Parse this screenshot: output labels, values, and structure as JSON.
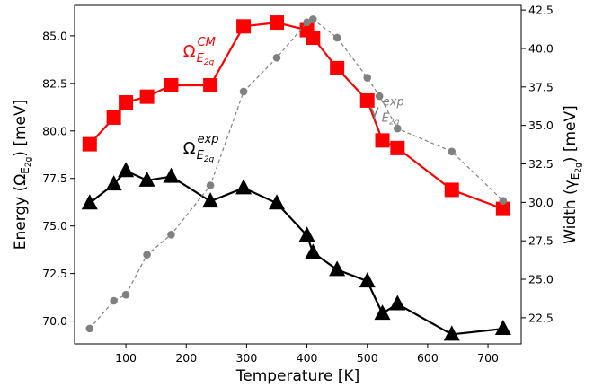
{
  "chart_data": {
    "type": "line",
    "xlabel": "Temperature [K]",
    "ylabel_left": "Energy (Ω",
    "ylabel_left_sub": "E",
    "ylabel_left_subsub": "2g",
    "ylabel_left_tail": ") [meV]",
    "ylabel_right": "Width (γ",
    "ylabel_right_sub": "E",
    "ylabel_right_subsub": "2g",
    "ylabel_right_tail": ") [meV]",
    "xlim": [
      15,
      755
    ],
    "ylim_left": [
      68.8,
      86.6
    ],
    "ylim_right": [
      20.8,
      42.8
    ],
    "x_ticks": [
      "100",
      "200",
      "300",
      "400",
      "500",
      "600",
      "700"
    ],
    "y_left_ticks": [
      "70.0",
      "72.5",
      "75.0",
      "77.5",
      "80.0",
      "82.5",
      "85.0"
    ],
    "y_right_ticks": [
      "22.5",
      "25.0",
      "27.5",
      "30.0",
      "32.5",
      "35.0",
      "37.5",
      "40.0",
      "42.5"
    ],
    "series": [
      {
        "name": "Ω_E2g^CM",
        "axis": "left",
        "color": "#ff0000",
        "marker": "square",
        "x": [
          40,
          80,
          100,
          135,
          175,
          240,
          295,
          350,
          400,
          410,
          450,
          500,
          525,
          550,
          640,
          725
        ],
        "y": [
          79.3,
          80.7,
          81.5,
          81.8,
          82.4,
          82.4,
          85.5,
          85.7,
          85.3,
          84.9,
          83.3,
          81.6,
          79.5,
          79.1,
          76.9,
          75.9
        ]
      },
      {
        "name": "Ω_E2g^exp",
        "axis": "left",
        "color": "#000000",
        "marker": "triangle",
        "x": [
          40,
          80,
          100,
          135,
          175,
          240,
          295,
          350,
          400,
          410,
          450,
          500,
          525,
          550,
          640,
          725
        ],
        "y": [
          76.2,
          77.2,
          77.9,
          77.4,
          77.6,
          76.3,
          77.0,
          76.2,
          74.5,
          73.6,
          72.7,
          72.1,
          70.4,
          70.9,
          69.3,
          69.6
        ]
      },
      {
        "name": "γ_E2g^exp",
        "axis": "right",
        "color": "#808080",
        "marker": "circle",
        "x": [
          40,
          80,
          100,
          135,
          175,
          240,
          295,
          350,
          400,
          410,
          450,
          500,
          520,
          550,
          640,
          725
        ],
        "y": [
          21.8,
          23.6,
          24.0,
          26.6,
          27.9,
          31.1,
          37.2,
          39.4,
          41.7,
          41.9,
          40.7,
          38.1,
          36.9,
          34.8,
          33.3,
          30.1
        ]
      }
    ],
    "annotations": [
      {
        "main": "Ω",
        "sup": "CM",
        "sub": "E",
        "subsub": "2g",
        "color": "#ff0000",
        "x": 205,
        "y": 83.9
      },
      {
        "main": "Ω",
        "sup": "exp",
        "sub": "E",
        "subsub": "2g",
        "color": "#000000",
        "x": 205,
        "y": 78.8
      },
      {
        "main": "γ",
        "sup": "exp",
        "sub": "E",
        "subsub": "2g",
        "color": "#808080",
        "x": 512,
        "y": 35.6
      }
    ]
  }
}
